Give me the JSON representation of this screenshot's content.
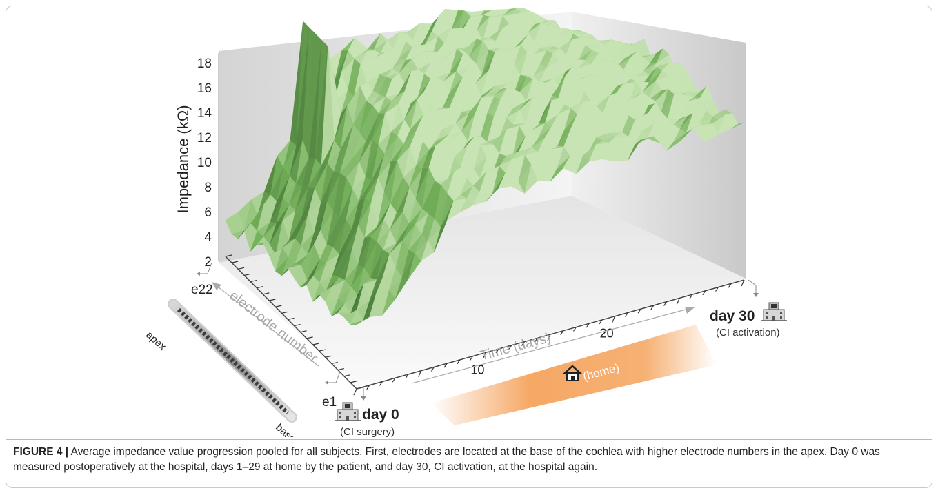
{
  "chart_data": {
    "type": "surface3d",
    "title": "",
    "ylabel": "Impedance (kΩ)",
    "yticks": [
      "2",
      "4",
      "6",
      "8",
      "10",
      "12",
      "14",
      "16",
      "18"
    ],
    "ylim": [
      1,
      18.5
    ],
    "xlabel": "Time (days)",
    "xticks": [
      {
        "value": 10,
        "label": "10"
      },
      {
        "value": 20,
        "label": "20"
      }
    ],
    "xlim": [
      0,
      30
    ],
    "zlabel": "electrode number",
    "zlim": [
      1,
      22
    ],
    "electrodes": [
      "e1",
      "e22"
    ],
    "series_summary": [
      {
        "electrode": 1,
        "day0": 6.2,
        "day10": 13.5,
        "day20": 14.0,
        "day30": 13.4
      },
      {
        "electrode": 8,
        "day0": 5.0,
        "day10": 14.5,
        "day20": 15.5,
        "day30": 13.0
      },
      {
        "electrode": 15,
        "day0": 4.5,
        "day10": 15.5,
        "day20": 16.0,
        "day30": 12.5
      },
      {
        "electrode": 22,
        "day0": 3.5,
        "day10": 15.0,
        "day20": 15.5,
        "day30": 9.0
      }
    ],
    "colors": {
      "surface_dark": "#2f5a27",
      "surface_mid": "#74b05a",
      "surface_light": "#c8e4b4",
      "home_band": "#f5a35c"
    }
  },
  "annotations": {
    "e22": "e22",
    "e1": "e1",
    "apex": "apex",
    "base": "base",
    "electrode_number": "electrode number",
    "time_days": "Time (days)",
    "day0": "day 0",
    "day0_sub": "(CI surgery)",
    "day30": "day 30",
    "day30_sub": "(CI activation)",
    "home": "(home)",
    "hospital_icon": "hospital-icon",
    "house_icon": "house-icon"
  },
  "caption": {
    "label": "FIGURE 4 |",
    "text": "Average impedance value progression pooled for all subjects. First, electrodes are located at the base of the cochlea with higher electrode numbers in the apex. Day 0 was measured postoperatively at the hospital, days 1–29 at home by the patient, and day 30, CI activation, at the hospital again."
  }
}
